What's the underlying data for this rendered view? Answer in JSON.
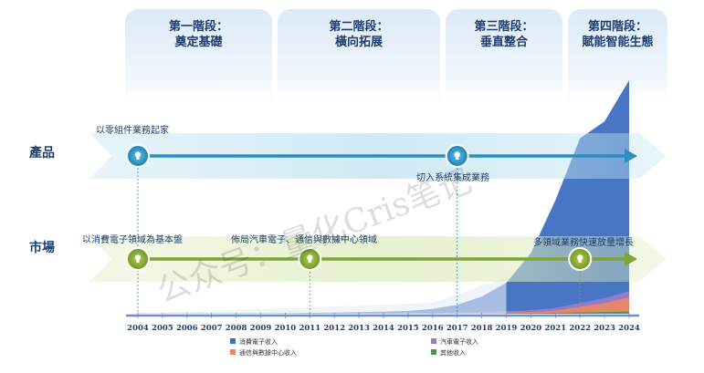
{
  "stages": [
    {
      "line1": "第一階段：",
      "line2": "奠定基礎"
    },
    {
      "line1": "第二階段：",
      "line2": "橫向拓展"
    },
    {
      "line1": "第三階段：",
      "line2": "垂直整合"
    },
    {
      "line1": "第四階段：",
      "line2": "賦能智能生態"
    }
  ],
  "rows": {
    "product": "產品",
    "market": "市場"
  },
  "milestones": {
    "product": [
      {
        "year": 2004,
        "label": "以零組件業務起家"
      },
      {
        "year": 2017,
        "label": "切入系統集成業務"
      }
    ],
    "market": [
      {
        "year": 2004,
        "label": "以消費電子領域為基本盤"
      },
      {
        "year": 2011,
        "label": "佈局汽車電子、通信與數據中心領域"
      },
      {
        "year": 2022,
        "label": "多領域業務快速放量增長"
      }
    ]
  },
  "watermark": "公众号：量化Cris笔记",
  "colors": {
    "consumer": "#3f6fc1",
    "auto": "#9b7cc8",
    "telecom": "#f08a5d",
    "other": "#3d9b4a",
    "product_arrow": "#2a8fbf",
    "market_arrow": "#7fa334"
  },
  "chart_data": {
    "type": "area",
    "stacked": true,
    "x": [
      2004,
      2005,
      2006,
      2007,
      2008,
      2009,
      2010,
      2011,
      2012,
      2013,
      2014,
      2015,
      2016,
      2017,
      2018,
      2019,
      2020,
      2021,
      2022,
      2023,
      2024
    ],
    "series": [
      {
        "name": "消費電子收入",
        "values": [
          0.2,
          0.25,
          0.3,
          0.35,
          0.4,
          0.45,
          0.5,
          0.6,
          0.8,
          1.0,
          1.3,
          2.0,
          3.5,
          7.0,
          14.0,
          26.0,
          52.0,
          98.0,
          150.0,
          161.0,
          192.0
        ]
      },
      {
        "name": "汽車電子收入",
        "values": [
          0,
          0,
          0,
          0,
          0,
          0,
          0,
          0.1,
          0.1,
          0.2,
          0.2,
          0.3,
          0.4,
          0.5,
          0.7,
          1.0,
          1.5,
          2.5,
          3.5,
          4.5,
          5.5
        ]
      },
      {
        "name": "通信與數據中心收入",
        "values": [
          0,
          0,
          0,
          0,
          0,
          0,
          0,
          0.1,
          0.1,
          0.1,
          0.2,
          0.2,
          0.3,
          0.4,
          0.6,
          0.8,
          1.2,
          2.0,
          5.0,
          8.0,
          13.0
        ]
      },
      {
        "name": "其他收入",
        "values": [
          0,
          0,
          0,
          0,
          0,
          0,
          0,
          0,
          0,
          0.1,
          0.1,
          0.1,
          0.2,
          0.2,
          0.3,
          0.4,
          0.5,
          0.8,
          1.2,
          1.6,
          2.0
        ]
      }
    ],
    "legend_position": "bottom",
    "grid": false
  }
}
